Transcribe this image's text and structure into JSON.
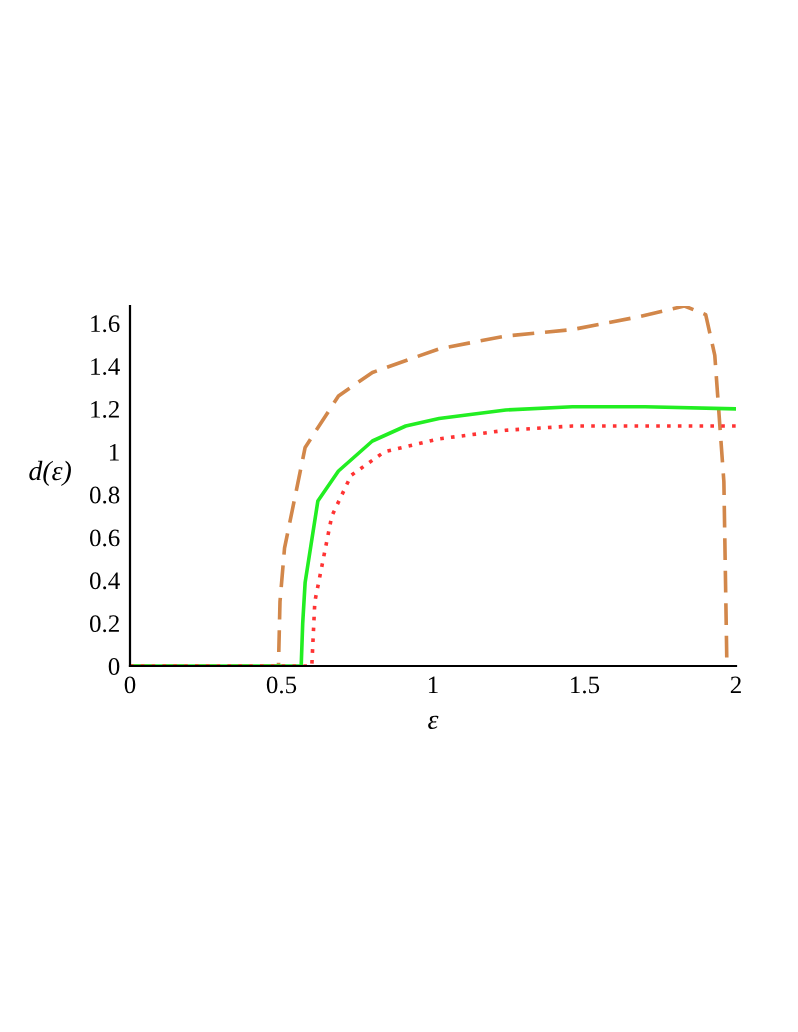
{
  "chart_data": {
    "type": "line",
    "xlabel": "ε",
    "ylabel": "d(ε)",
    "xlim": [
      0,
      2
    ],
    "ylim": [
      0,
      1.68
    ],
    "xticks": [
      0,
      0.5,
      1,
      1.5,
      2
    ],
    "yticks": [
      0,
      0.2,
      0.4,
      0.6,
      0.8,
      {
        "value": 1,
        "label": "1"
      },
      1.2,
      1.4,
      1.6
    ],
    "grid": false,
    "legend": false,
    "series": [
      {
        "color": "#d2874a",
        "line_style": "dashed",
        "x": [
          0,
          0.49,
          0.495,
          0.51,
          0.578,
          0.688,
          0.8,
          1.02,
          1.24,
          1.46,
          1.68,
          1.83,
          1.9,
          1.93,
          1.96,
          1.97
        ],
        "values": [
          0,
          0,
          0.3,
          0.55,
          1.02,
          1.26,
          1.37,
          1.48,
          1.54,
          1.57,
          1.63,
          1.68,
          1.64,
          1.45,
          0.86,
          0
        ]
      },
      {
        "color": "#22ee22",
        "line_style": "solid",
        "x": [
          0,
          0.565,
          0.57,
          0.578,
          0.62,
          0.688,
          0.8,
          0.91,
          1.02,
          1.24,
          1.46,
          1.7,
          2.0
        ],
        "values": [
          0,
          0,
          0.2,
          0.39,
          0.77,
          0.91,
          1.05,
          1.12,
          1.155,
          1.195,
          1.21,
          1.21,
          1.2
        ]
      },
      {
        "color": "#ff3333",
        "line_style": "dotted",
        "x": [
          0,
          0.6,
          0.605,
          0.61,
          0.666,
          0.73,
          0.84,
          1.02,
          1.24,
          1.46,
          1.7,
          2.0
        ],
        "values": [
          0,
          0,
          0.15,
          0.3,
          0.7,
          0.89,
          1.0,
          1.06,
          1.1,
          1.12,
          1.12,
          1.12
        ]
      }
    ]
  }
}
